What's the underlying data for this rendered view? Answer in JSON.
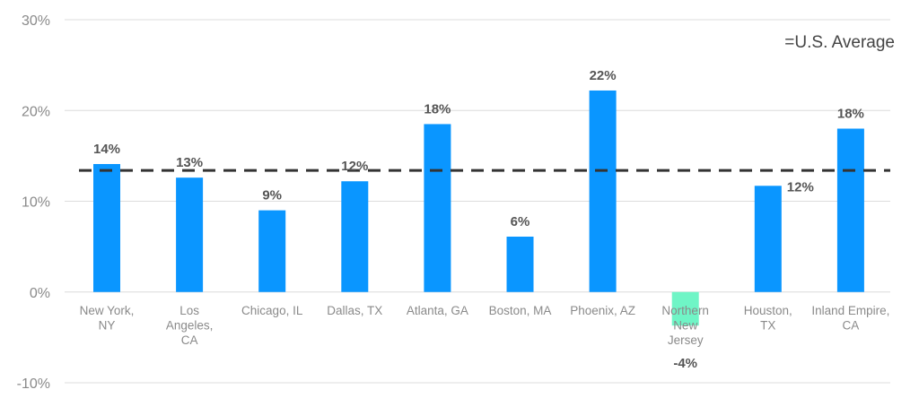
{
  "chart_data": {
    "type": "bar",
    "categories": [
      "New York, NY",
      "Los Angeles, CA",
      "Chicago, IL",
      "Dallas, TX",
      "Atlanta, GA",
      "Boston, MA",
      "Phoenix, AZ",
      "Northern New Jersey",
      "Houston, TX",
      "Inland Empire, CA"
    ],
    "category_lines": [
      [
        "New York,",
        "NY"
      ],
      [
        "Los",
        "Angeles,",
        "CA"
      ],
      [
        "Chicago, IL"
      ],
      [
        "Dallas, TX"
      ],
      [
        "Atlanta, GA"
      ],
      [
        "Boston, MA"
      ],
      [
        "Phoenix, AZ"
      ],
      [
        "Northern",
        "New",
        "Jersey"
      ],
      [
        "Houston,",
        "TX"
      ],
      [
        "Inland Empire,",
        "CA"
      ]
    ],
    "values": [
      14.1,
      12.6,
      9.0,
      12.2,
      18.5,
      6.1,
      22.2,
      -3.7,
      11.7,
      18.0
    ],
    "value_labels": [
      "14%",
      "13%",
      "9%",
      "12%",
      "18%",
      "6%",
      "22%",
      "-4%",
      "12%",
      "18%"
    ],
    "highlight_colors": [
      "#0a96ff",
      "#0a96ff",
      "#0a96ff",
      "#0a96ff",
      "#0a96ff",
      "#0a96ff",
      "#0a96ff",
      "#6ff5c6",
      "#0a96ff",
      "#0a96ff"
    ],
    "reference_line": {
      "label": "=U.S. Average",
      "value": 13.4,
      "color": "#333333",
      "style": "dashed"
    },
    "ylim": [
      -10,
      30
    ],
    "yticks": [
      -10,
      0,
      10,
      20,
      30
    ],
    "ytick_labels": [
      "-10%",
      "0%",
      "10%",
      "20%",
      "30%"
    ],
    "grid": true,
    "legend_position": "top-right",
    "title": "",
    "xlabel": "",
    "ylabel": ""
  }
}
